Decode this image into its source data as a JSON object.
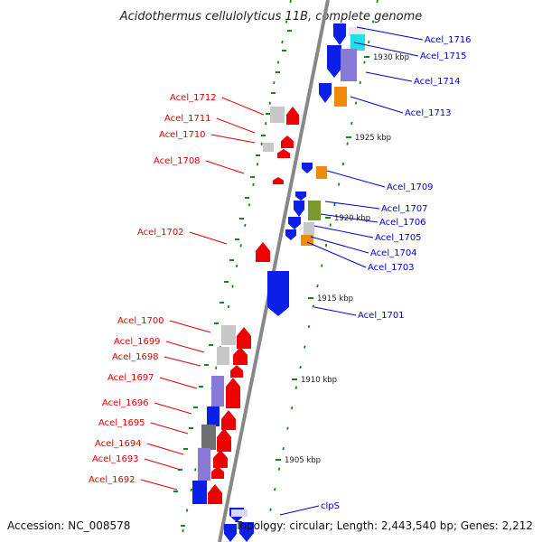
{
  "title": "Acidothermus cellulolyticus 11B, complete genome",
  "footer": {
    "accession": "Accession: NC_008578",
    "topology": "Topology: circular; Length: 2,443,540 bp; Genes: 2,212"
  },
  "colors": {
    "forward_label": "#dd0000",
    "reverse_label": "#0000cc",
    "tick_green": "#118811",
    "backbone": "#888888"
  },
  "scale_labels": [
    "1930 kbp",
    "1925 kbp",
    "1920 kbp",
    "1915 kbp",
    "1910 kbp",
    "1905 kbp"
  ],
  "genes_reverse": [
    "Acel_1716",
    "Acel_1715",
    "Acel_1714",
    "Acel_1713",
    "Acel_1709",
    "Acel_1707",
    "Acel_1706",
    "Acel_1705",
    "Acel_1704",
    "Acel_1703",
    "Acel_1701",
    "clpS"
  ],
  "genes_forward": [
    "Acel_1712",
    "Acel_1711",
    "Acel_1710",
    "Acel_1708",
    "Acel_1702",
    "Acel_1700",
    "Acel_1699",
    "Acel_1698",
    "Acel_1697",
    "Acel_1696",
    "Acel_1695",
    "Acel_1694",
    "Acel_1693",
    "Acel_1692"
  ]
}
